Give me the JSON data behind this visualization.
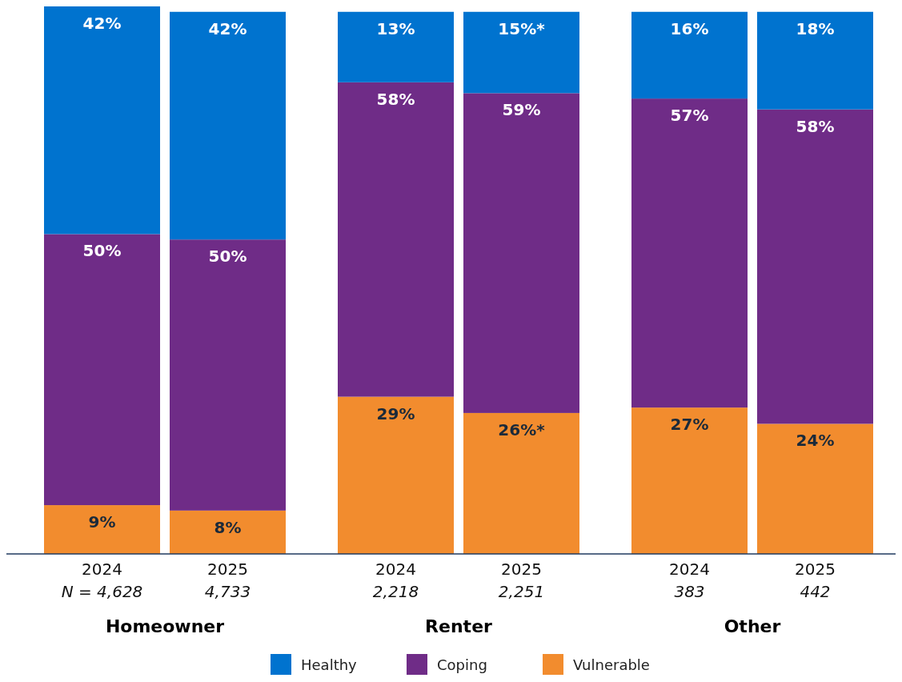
{
  "chart_data": {
    "type": "bar",
    "stacked": true,
    "categories": [
      "2024\nN = 4,628",
      "2025\n4,733",
      "2024\n2,218",
      "2025\n2,251",
      "2024\n383",
      "2025\n442"
    ],
    "annotations": [
      "Homeowner",
      "Renter",
      "Other"
    ],
    "series": [
      {
        "name": "Vulnerable",
        "color": "#f28c2e",
        "values": [
          9,
          8,
          29,
          26,
          27,
          24
        ],
        "value_labels": [
          "9%",
          "8%",
          "29%",
          "26%*",
          "27%",
          "24%"
        ]
      },
      {
        "name": "Coping",
        "color": "#6f2c87",
        "values": [
          50,
          50,
          58,
          59,
          57,
          58
        ],
        "value_labels": [
          "50%",
          "50%",
          "58%",
          "59%",
          "57%",
          "58%"
        ]
      },
      {
        "name": "Healthy",
        "color": "#0073cf",
        "values": [
          42,
          42,
          13,
          15,
          16,
          18
        ],
        "value_labels": [
          "42%",
          "42%",
          "13%",
          "15%*",
          "16%",
          "18%"
        ]
      }
    ],
    "legend": "bottom"
  }
}
